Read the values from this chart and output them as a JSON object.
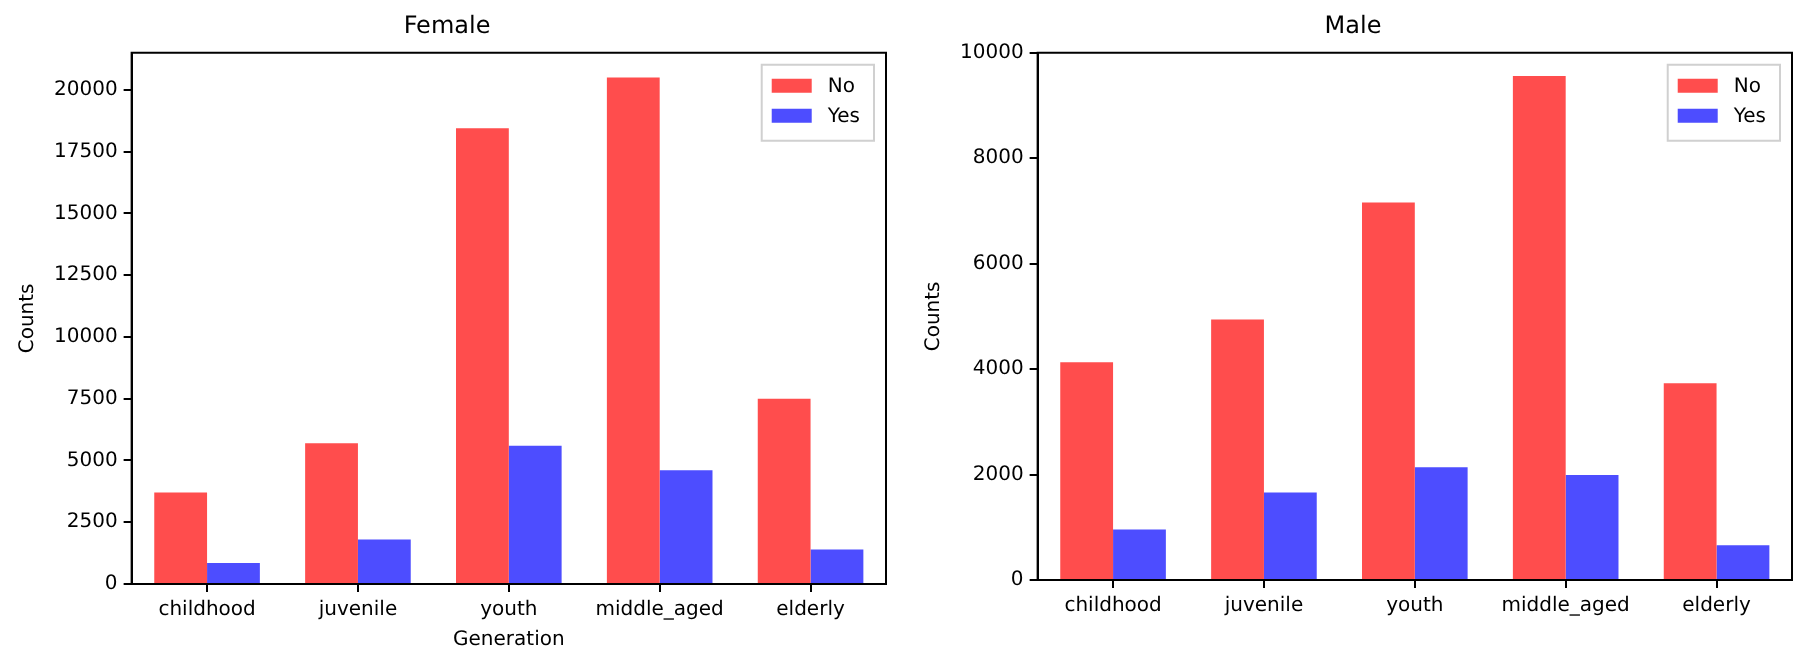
{
  "chart_data": [
    {
      "type": "bar",
      "title": "Female",
      "xlabel": "Generation",
      "ylabel": "Counts",
      "categories": [
        "childhood",
        "juvenile",
        "youth",
        "middle_aged",
        "elderly"
      ],
      "series": [
        {
          "name": "No",
          "color": "#ff4d4d",
          "values": [
            3700,
            5700,
            18450,
            20500,
            7500
          ]
        },
        {
          "name": "Yes",
          "color": "#4d4dff",
          "values": [
            850,
            1800,
            5600,
            4600,
            1400
          ]
        }
      ],
      "ylim": [
        0,
        21500
      ],
      "yticks": [
        0,
        2500,
        5000,
        7500,
        10000,
        12500,
        15000,
        17500,
        20000
      ],
      "grid": false,
      "legend": "top right"
    },
    {
      "type": "bar",
      "title": "Male",
      "ylabel": "Counts",
      "categories": [
        "childhood",
        "juvenile",
        "youth",
        "middle_aged",
        "elderly"
      ],
      "series": [
        {
          "name": "No",
          "color": "#ff4d4d",
          "values": [
            4130,
            4940,
            7160,
            9560,
            3730
          ]
        },
        {
          "name": "Yes",
          "color": "#4d4dff",
          "values": [
            960,
            1660,
            2140,
            1990,
            660
          ]
        }
      ],
      "ylim": [
        0,
        10000
      ],
      "yticks": [
        0,
        2000,
        4000,
        6000,
        8000,
        10000
      ],
      "grid": false,
      "legend": "top right"
    }
  ]
}
